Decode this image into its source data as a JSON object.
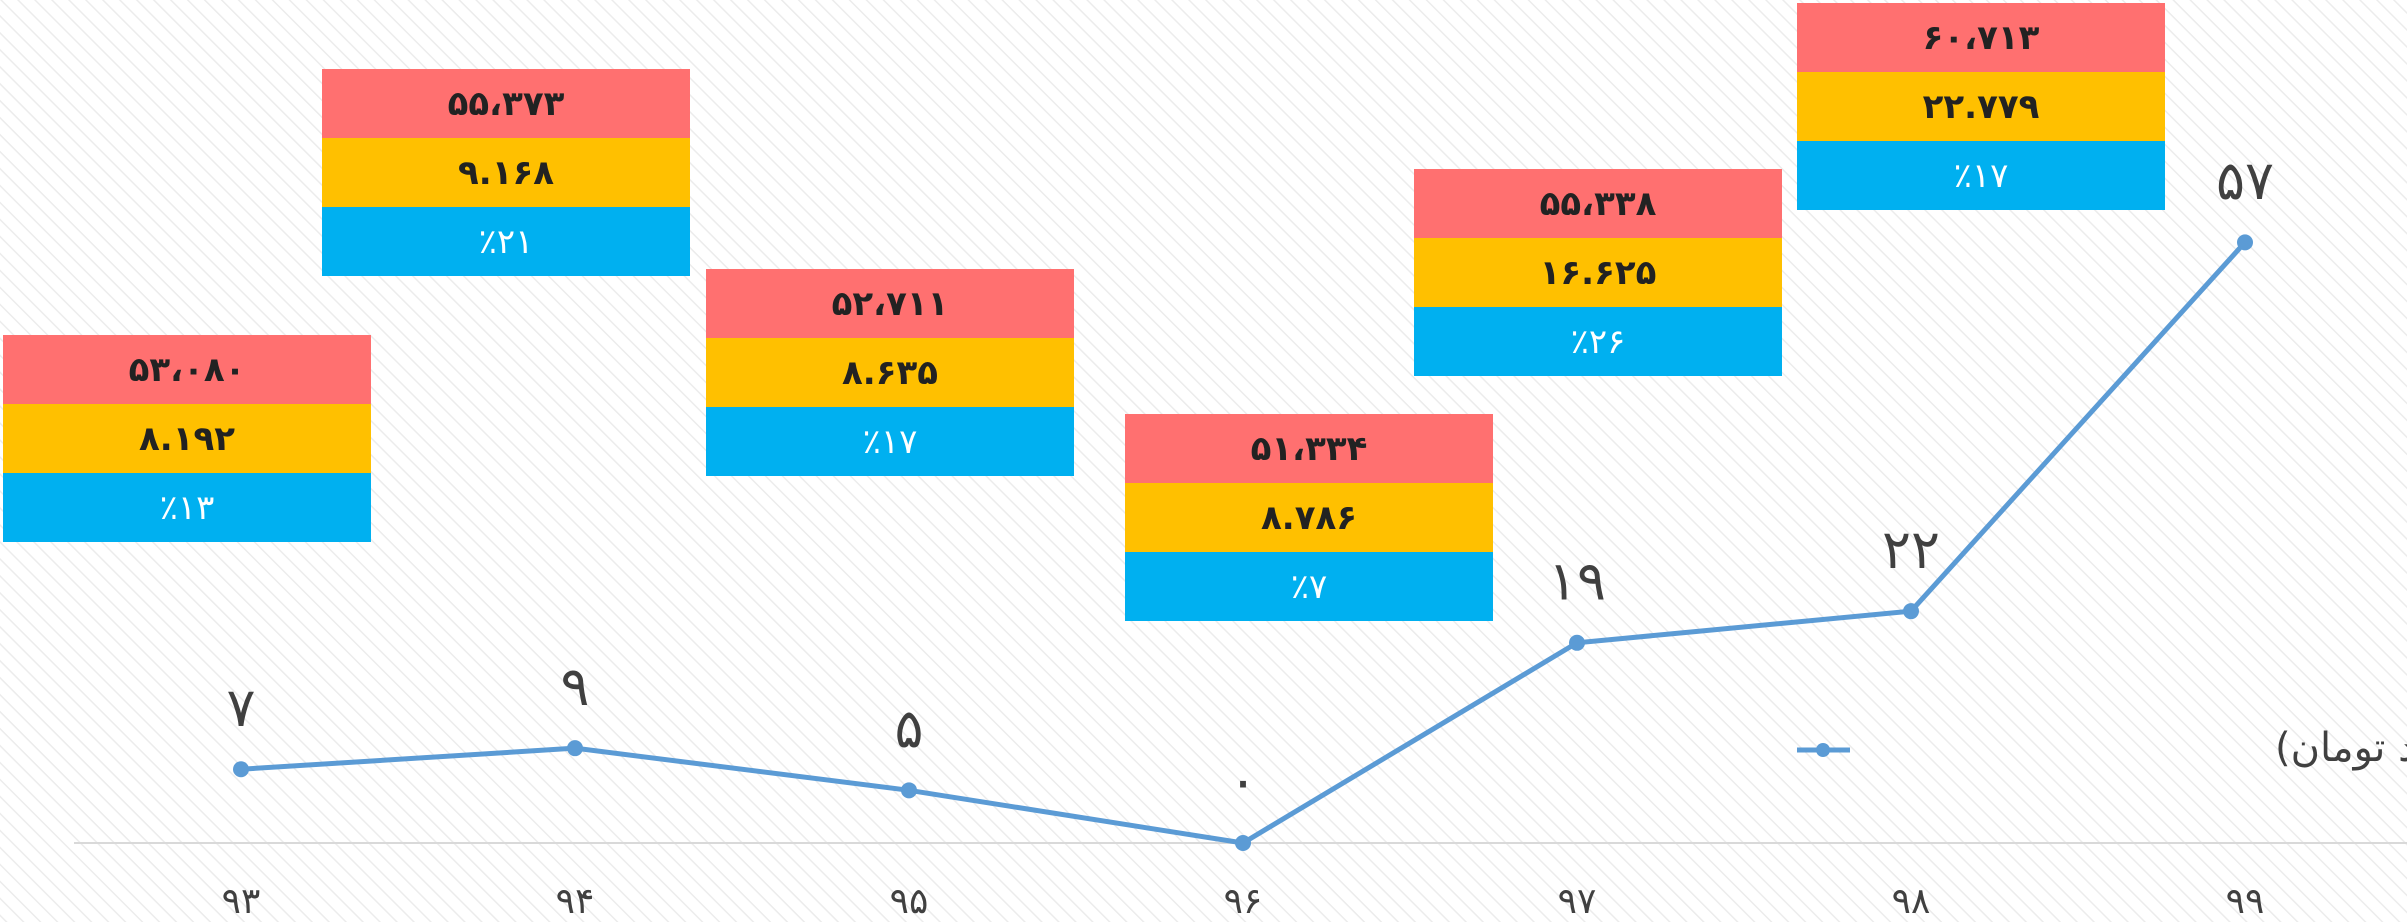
{
  "chart_data": {
    "type": "line",
    "categories": [
      "۹۳",
      "۹۴",
      "۹۵",
      "۹۶",
      "۹۷",
      "۹۸",
      "۹۹"
    ],
    "series": [
      {
        "name": "سود خالص (میلیارد تومان)",
        "color": "#5b9bd5",
        "values": [
          7,
          9,
          5,
          0,
          19,
          22,
          57
        ],
        "value_labels": [
          "۷",
          "۹",
          "۵",
          "۰",
          "۱۹",
          "۲۲",
          "۵۷"
        ]
      }
    ],
    "ylim": [
      0,
      80
    ],
    "legend": "right",
    "box_colors": [
      "#ff7070",
      "#ffc000",
      "#00b0f0"
    ],
    "boxes": [
      {
        "rows": [
          "۵۳،۰۸۰",
          "۸.۱۹۲",
          "٪۱۳"
        ]
      },
      {
        "rows": [
          "۵۵،۳۷۳",
          "۹.۱۶۸",
          "٪۲۱"
        ]
      },
      {
        "rows": [
          "۵۲،۷۱۱",
          "۸.۶۳۵",
          "٪۱۷"
        ]
      },
      {
        "rows": [
          "۵۱،۳۳۴",
          "۸.۷۸۶",
          "٪۷"
        ]
      },
      {
        "rows": [
          "۵۵،۳۳۸",
          "۱۶.۶۲۵",
          "٪۲۶"
        ]
      },
      {
        "rows": [
          "۶۰،۷۱۳",
          "۲۲.۷۷۹",
          "٪۱۷"
        ]
      }
    ]
  }
}
